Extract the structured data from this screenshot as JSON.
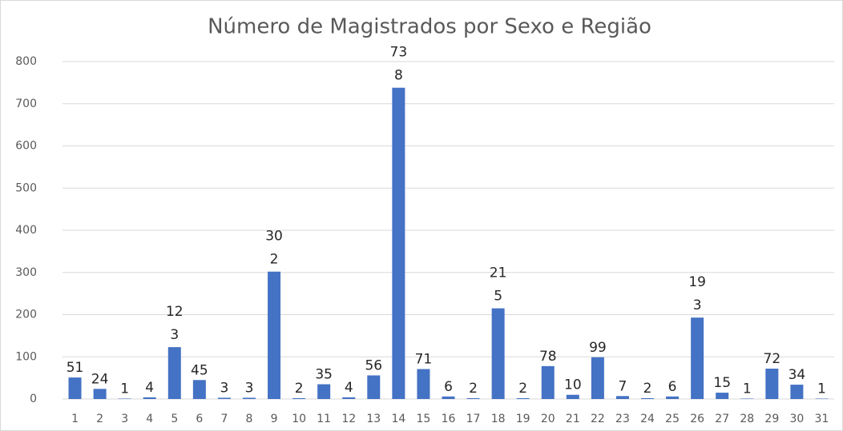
{
  "chart_data": {
    "type": "bar",
    "title": "Número de Magistrados por Sexo e Região",
    "categories": [
      "1",
      "2",
      "3",
      "4",
      "5",
      "6",
      "7",
      "8",
      "9",
      "10",
      "11",
      "12",
      "13",
      "14",
      "15",
      "16",
      "17",
      "18",
      "19",
      "20",
      "21",
      "22",
      "23",
      "24",
      "25",
      "26",
      "27",
      "28",
      "29",
      "30",
      "31"
    ],
    "values": [
      51,
      24,
      1,
      4,
      123,
      45,
      3,
      3,
      302,
      2,
      35,
      4,
      56,
      738,
      71,
      6,
      2,
      215,
      2,
      78,
      10,
      99,
      7,
      2,
      6,
      193,
      15,
      1,
      72,
      34,
      1
    ],
    "color": "#4472c4",
    "ylim": [
      0,
      800
    ],
    "yticks": [
      0,
      100,
      200,
      300,
      400,
      500,
      600,
      700,
      800
    ],
    "grid": true
  }
}
